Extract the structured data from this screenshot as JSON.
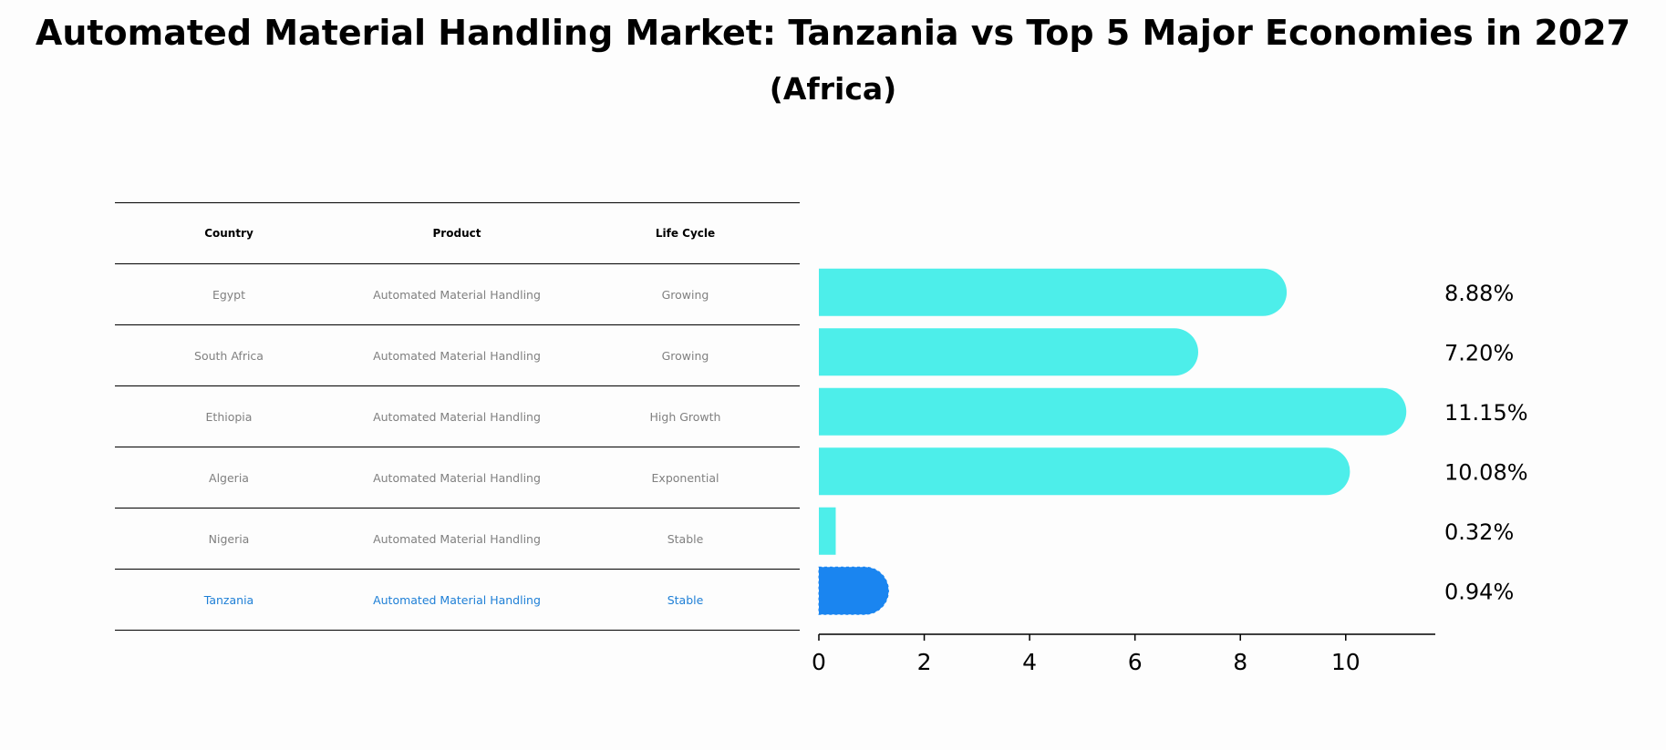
{
  "title": "Automated Material Handling Market: Tanzania vs Top 5 Major Economies in 2027",
  "subtitle": "(Africa)",
  "table": {
    "headers": [
      "Country",
      "Product",
      "Life Cycle"
    ],
    "rows": [
      {
        "country": "Egypt",
        "product": "Automated Material Handling",
        "life_cycle": "Growing"
      },
      {
        "country": "South Africa",
        "product": "Automated Material Handling",
        "life_cycle": "Growing"
      },
      {
        "country": "Ethiopia",
        "product": "Automated Material Handling",
        "life_cycle": "High Growth"
      },
      {
        "country": "Algeria",
        "product": "Automated Material Handling",
        "life_cycle": "Exponential"
      },
      {
        "country": "Nigeria",
        "product": "Automated Material Handling",
        "life_cycle": "Stable"
      },
      {
        "country": "Tanzania",
        "product": "Automated Material Handling",
        "life_cycle": "Stable"
      }
    ]
  },
  "chart_data": {
    "type": "bar",
    "orientation": "horizontal",
    "categories": [
      "Egypt",
      "South Africa",
      "Ethiopia",
      "Algeria",
      "Nigeria",
      "Tanzania"
    ],
    "values": [
      8.88,
      7.2,
      11.15,
      10.08,
      0.32,
      0.94
    ],
    "value_labels": [
      "8.88%",
      "7.20%",
      "11.15%",
      "10.08%",
      "0.32%",
      "0.94%"
    ],
    "highlight": "Tanzania",
    "xlim": [
      0,
      11.7
    ],
    "xticks": [
      0,
      2,
      4,
      6,
      8,
      10
    ],
    "colors": {
      "default": "#4deeea",
      "highlight": "#1a85f0"
    }
  }
}
